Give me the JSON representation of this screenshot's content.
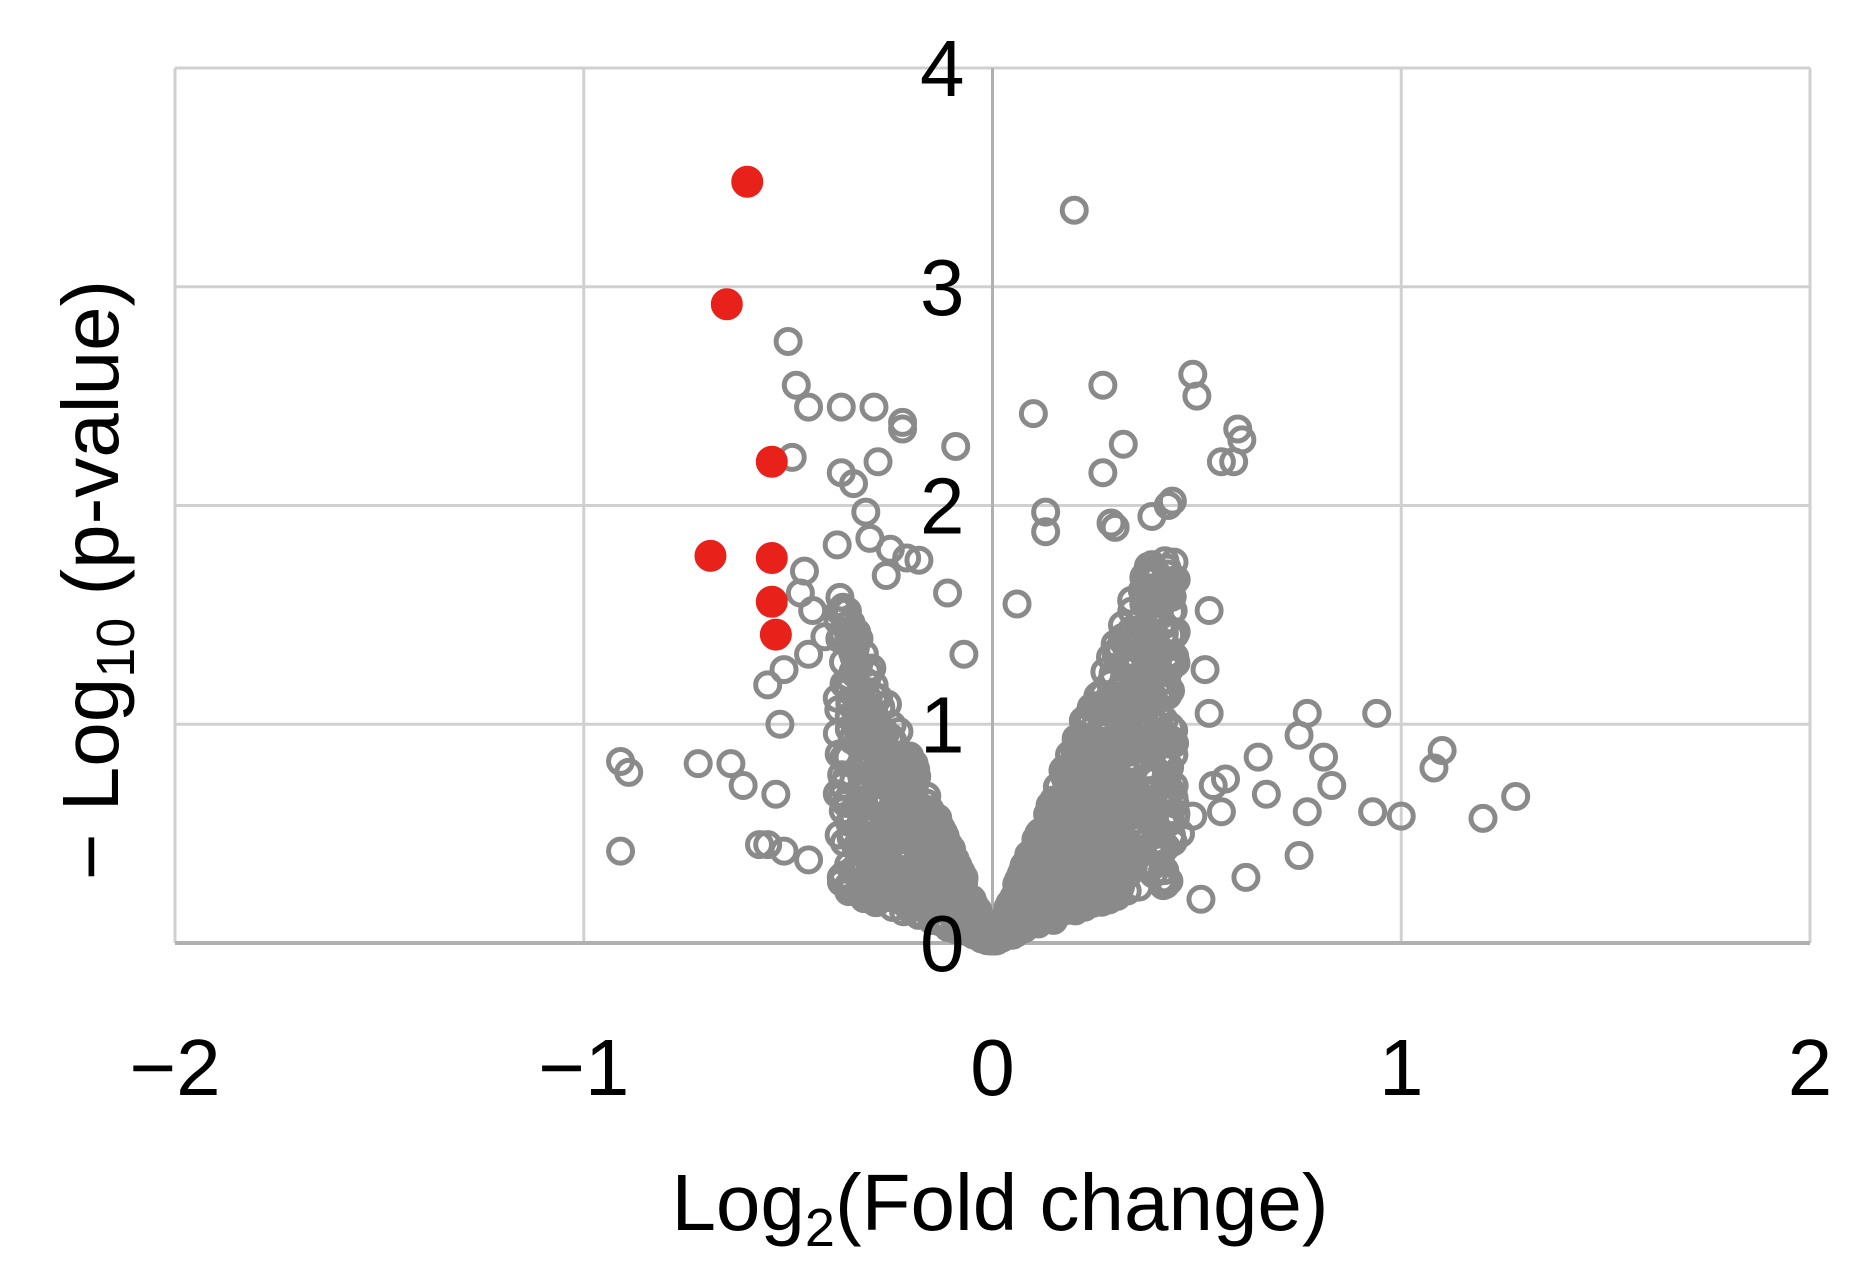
{
  "chart_data": {
    "type": "scatter",
    "title": "",
    "xlabel": {
      "main": "Log",
      "sub": "2",
      "rest": "(Fold change)"
    },
    "ylabel": {
      "prefix": "− Log",
      "sub": "10",
      "rest": " (p-value)"
    },
    "xlim": [
      -2,
      2
    ],
    "ylim": [
      0,
      4
    ],
    "x_ticks": [
      -2,
      -1,
      0,
      1,
      2
    ],
    "y_ticks": [
      0,
      1,
      2,
      3,
      4
    ],
    "x_tick_labels": [
      "−2",
      "−1",
      "0",
      "1",
      "2"
    ],
    "y_tick_labels": [
      "0",
      "1",
      "2",
      "3",
      "4"
    ],
    "grid": true,
    "legend": "none",
    "colors": {
      "significant": "#e8221b",
      "non_significant": "#8a8a8a",
      "grid": "#d0d0d0",
      "axis": "#b0b0b0"
    },
    "series": [
      {
        "marker": "filled",
        "color": "#e8221b",
        "x": [
          -0.6,
          -0.65,
          -0.54,
          -0.69,
          -0.54,
          -0.54,
          -0.53
        ],
        "y": [
          3.48,
          2.92,
          2.2,
          1.77,
          1.76,
          1.56,
          1.41
        ]
      },
      {
        "marker": "open",
        "color": "#8a8a8a",
        "x": [
          0.2,
          -0.5,
          -0.48,
          -0.45,
          -0.37,
          -0.29,
          -0.22,
          -0.22,
          -0.09,
          0.1,
          0.27,
          0.32,
          0.49,
          0.5,
          0.6,
          0.61,
          0.56,
          0.59,
          -0.49,
          -0.28,
          -0.37,
          -0.34,
          -0.31,
          0.27,
          0.29,
          0.44,
          0.43,
          0.39,
          0.3,
          0.13,
          0.13,
          -0.3,
          -0.25,
          -0.21,
          -0.18,
          -0.38,
          -0.46,
          -0.47,
          -0.44,
          -0.26,
          -0.11,
          0.06,
          0.44,
          0.53,
          0.52,
          0.53,
          -0.41,
          -0.45,
          -0.51,
          -0.55,
          -0.36,
          -0.07,
          -0.91,
          -0.89,
          -0.72,
          -0.64,
          -0.61,
          -0.53,
          -0.52,
          -0.55,
          -0.57,
          -0.51,
          -0.45,
          -0.91,
          -0.37,
          0.77,
          0.94,
          1.1,
          1.08,
          0.75,
          0.81,
          0.83,
          0.65,
          0.57,
          0.67,
          0.77,
          0.93,
          1.0,
          1.2,
          1.28,
          0.75,
          0.62,
          0.51,
          0.39,
          0.32,
          0.46,
          0.49,
          0.56,
          0.54,
          -0.3,
          -0.15,
          -0.19
        ],
        "y": [
          3.35,
          2.75,
          2.55,
          2.45,
          2.45,
          2.45,
          2.38,
          2.35,
          2.27,
          2.42,
          2.55,
          2.28,
          2.6,
          2.5,
          2.35,
          2.3,
          2.2,
          2.2,
          2.22,
          2.2,
          2.15,
          2.1,
          1.97,
          2.15,
          1.92,
          2.02,
          2.0,
          1.95,
          1.9,
          1.97,
          1.88,
          1.85,
          1.8,
          1.76,
          1.75,
          1.82,
          1.7,
          1.6,
          1.52,
          1.68,
          1.6,
          1.55,
          1.65,
          1.52,
          1.25,
          1.05,
          1.4,
          1.32,
          1.25,
          1.18,
          1.45,
          1.32,
          0.83,
          0.78,
          0.82,
          0.82,
          0.72,
          0.68,
          1.0,
          0.45,
          0.45,
          0.42,
          0.38,
          0.42,
          0.3,
          1.05,
          1.05,
          0.88,
          0.8,
          0.95,
          0.85,
          0.72,
          0.85,
          0.75,
          0.68,
          0.6,
          0.6,
          0.58,
          0.57,
          0.67,
          0.4,
          0.3,
          0.2,
          0.35,
          0.38,
          0.5,
          0.58,
          0.6,
          0.72,
          0.25,
          0.45,
          0.65
        ]
      }
    ]
  }
}
